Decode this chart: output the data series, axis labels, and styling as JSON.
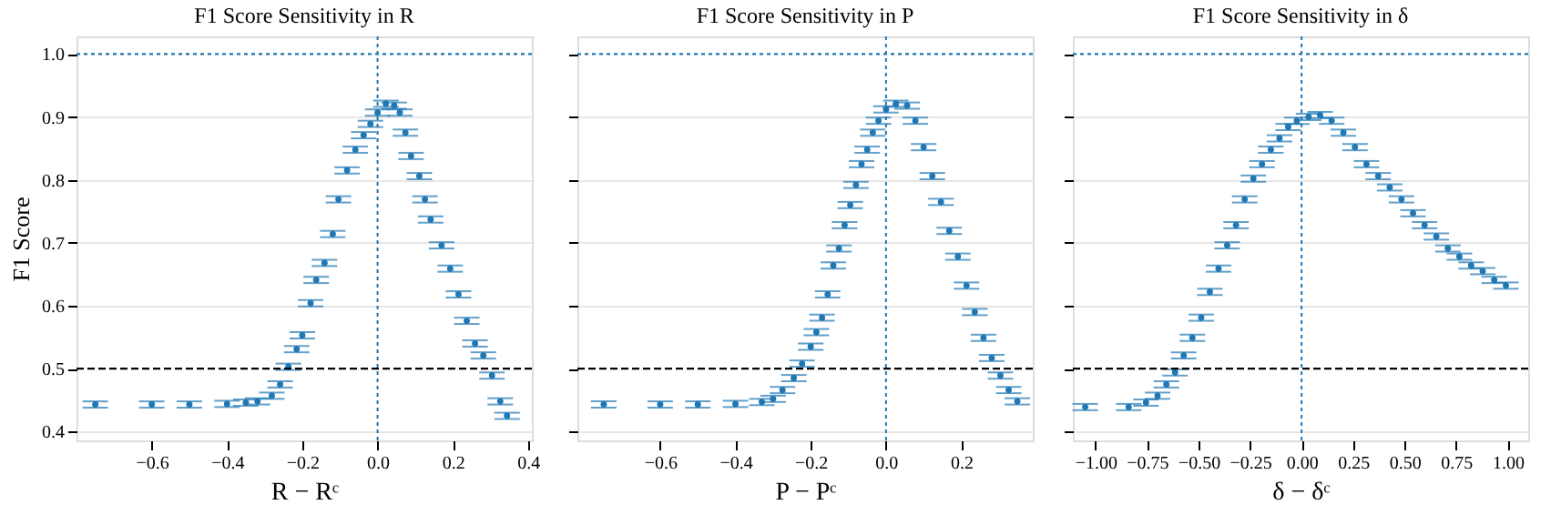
{
  "chart_data": [
    {
      "type": "scatter",
      "title": "F1 Score Sensitivity in R",
      "xlabel": "R − Rᶜ",
      "ylabel": "F1 Score",
      "marker": "circle",
      "grid": "y",
      "xlim": [
        -0.8,
        0.41
      ],
      "xticks": [
        -0.6,
        -0.4,
        -0.2,
        {
          "value": 0,
          "label": "0.0"
        },
        0.2,
        0.4
      ],
      "ylim": [
        0.386,
        1.028
      ],
      "yticks": [
        0.4,
        0.5,
        0.6,
        0.7,
        0.8,
        0.9,
        {
          "value": 1,
          "label": "1.0"
        }
      ],
      "x": [
        -0.75,
        -0.6,
        -0.5,
        -0.4,
        -0.35,
        -0.319,
        -0.281,
        -0.259,
        -0.237,
        -0.215,
        -0.2,
        -0.178,
        -0.163,
        -0.141,
        -0.119,
        -0.104,
        -0.081,
        -0.059,
        -0.037,
        -0.019,
        0.0,
        0.022,
        0.044,
        0.059,
        0.074,
        0.089,
        0.111,
        0.126,
        0.141,
        0.17,
        0.193,
        0.215,
        0.237,
        0.259,
        0.281,
        0.304,
        0.326,
        0.344
      ],
      "series": [
        {
          "color": "#1f77b4",
          "values": [
            0.443,
            0.443,
            0.443,
            0.444,
            0.446,
            0.448,
            0.457,
            0.475,
            0.503,
            0.531,
            0.553,
            0.604,
            0.641,
            0.668,
            0.714,
            0.769,
            0.815,
            0.848,
            0.871,
            0.889,
            0.907,
            0.921,
            0.918,
            0.907,
            0.875,
            0.838,
            0.806,
            0.769,
            0.737,
            0.696,
            0.659,
            0.618,
            0.576,
            0.54,
            0.521,
            0.489,
            0.448,
            0.425
          ],
          "errors": [
            0.005,
            0.005,
            0.005,
            0.005,
            0.005,
            0.005,
            0.005,
            0.005,
            0.005,
            0.005,
            0.005,
            0.005,
            0.005,
            0.005,
            0.005,
            0.005,
            0.005,
            0.005,
            0.005,
            0.005,
            0.005,
            0.005,
            0.005,
            0.005,
            0.005,
            0.005,
            0.005,
            0.005,
            0.005,
            0.005,
            0.005,
            0.005,
            0.005,
            0.005,
            0.005,
            0.005,
            0.005,
            0.005
          ]
        }
      ],
      "ref_lines": [
        {
          "axis": "y",
          "value": 1.0,
          "color": "#1f77b4",
          "line_style": "dotted"
        },
        {
          "axis": "y",
          "value": 0.5,
          "color": "#000000",
          "line_style": "dashed"
        },
        {
          "axis": "x",
          "value": 0.0,
          "color": "#1f77b4",
          "line_style": "dotted"
        }
      ]
    },
    {
      "type": "scatter",
      "title": "F1 Score Sensitivity in P",
      "xlabel": "P − Pᶜ",
      "marker": "circle",
      "grid": "y",
      "tick_labels": "x",
      "xlim": [
        -0.82,
        0.39
      ],
      "xticks": [
        -0.6,
        -0.4,
        -0.2,
        {
          "value": 0,
          "label": "0.0"
        },
        0.2
      ],
      "ylim": [
        0.386,
        1.028
      ],
      "yticks": [
        0.4,
        0.5,
        0.6,
        0.7,
        0.8,
        0.9,
        1.0
      ],
      "x": [
        -0.75,
        -0.6,
        -0.5,
        -0.4,
        -0.33,
        -0.3,
        -0.275,
        -0.245,
        -0.223,
        -0.2,
        -0.185,
        -0.17,
        -0.155,
        -0.14,
        -0.125,
        -0.11,
        -0.095,
        -0.08,
        -0.065,
        -0.05,
        -0.035,
        -0.02,
        0.0,
        0.026,
        0.056,
        0.078,
        0.1,
        0.123,
        0.146,
        0.168,
        0.191,
        0.214,
        0.236,
        0.259,
        0.281,
        0.304,
        0.326,
        0.349
      ],
      "series": [
        {
          "color": "#1f77b4",
          "values": [
            0.443,
            0.443,
            0.443,
            0.444,
            0.447,
            0.452,
            0.466,
            0.485,
            0.508,
            0.535,
            0.558,
            0.581,
            0.618,
            0.664,
            0.691,
            0.728,
            0.76,
            0.792,
            0.825,
            0.848,
            0.875,
            0.894,
            0.912,
            0.921,
            0.918,
            0.894,
            0.852,
            0.806,
            0.765,
            0.719,
            0.678,
            0.632,
            0.59,
            0.549,
            0.517,
            0.489,
            0.466,
            0.448
          ],
          "errors": [
            0.005,
            0.005,
            0.005,
            0.005,
            0.005,
            0.005,
            0.005,
            0.005,
            0.005,
            0.005,
            0.005,
            0.005,
            0.005,
            0.005,
            0.005,
            0.005,
            0.005,
            0.005,
            0.005,
            0.005,
            0.005,
            0.005,
            0.005,
            0.005,
            0.005,
            0.005,
            0.005,
            0.005,
            0.005,
            0.005,
            0.005,
            0.005,
            0.005,
            0.005,
            0.005,
            0.005,
            0.005,
            0.005
          ]
        }
      ],
      "ref_lines": [
        {
          "axis": "y",
          "value": 1.0,
          "color": "#1f77b4",
          "line_style": "dotted"
        },
        {
          "axis": "y",
          "value": 0.5,
          "color": "#000000",
          "line_style": "dashed"
        },
        {
          "axis": "x",
          "value": 0.0,
          "color": "#1f77b4",
          "line_style": "dotted"
        }
      ]
    },
    {
      "type": "scatter",
      "title": "F1 Score Sensitivity in δ",
      "xlabel": "δ − δᶜ",
      "marker": "circle",
      "grid": "y",
      "tick_labels": "x",
      "xlim": [
        -1.11,
        1.1
      ],
      "xticks": [
        {
          "value": -1,
          "label": "−1.00"
        },
        -0.75,
        {
          "value": -0.5,
          "label": "−0.50"
        },
        -0.25,
        {
          "value": 0,
          "label": "0.00"
        },
        0.25,
        {
          "value": 0.5,
          "label": "0.50"
        },
        0.75,
        {
          "value": 1,
          "label": "1.00"
        }
      ],
      "ylim": [
        0.386,
        1.028
      ],
      "yticks": [
        0.4,
        0.5,
        0.6,
        0.7,
        0.8,
        0.9,
        1.0
      ],
      "x": [
        -1.05,
        -0.839,
        -0.755,
        -0.699,
        -0.656,
        -0.614,
        -0.572,
        -0.53,
        -0.487,
        -0.445,
        -0.403,
        -0.361,
        -0.318,
        -0.276,
        -0.234,
        -0.192,
        -0.149,
        -0.107,
        -0.065,
        -0.023,
        0.034,
        0.09,
        0.146,
        0.203,
        0.259,
        0.315,
        0.372,
        0.428,
        0.485,
        0.541,
        0.597,
        0.654,
        0.71,
        0.766,
        0.823,
        0.879,
        0.935,
        0.992
      ],
      "series": [
        {
          "color": "#1f77b4",
          "values": [
            0.439,
            0.439,
            0.446,
            0.457,
            0.475,
            0.494,
            0.521,
            0.549,
            0.581,
            0.622,
            0.659,
            0.696,
            0.728,
            0.769,
            0.802,
            0.825,
            0.848,
            0.866,
            0.884,
            0.894,
            0.9,
            0.903,
            0.894,
            0.875,
            0.852,
            0.825,
            0.806,
            0.788,
            0.769,
            0.747,
            0.728,
            0.71,
            0.691,
            0.678,
            0.664,
            0.655,
            0.641,
            0.632
          ],
          "errors": [
            0.005,
            0.005,
            0.005,
            0.005,
            0.005,
            0.005,
            0.005,
            0.005,
            0.005,
            0.005,
            0.005,
            0.005,
            0.005,
            0.005,
            0.005,
            0.005,
            0.005,
            0.005,
            0.005,
            0.005,
            0.005,
            0.005,
            0.005,
            0.005,
            0.005,
            0.005,
            0.005,
            0.005,
            0.005,
            0.005,
            0.005,
            0.005,
            0.005,
            0.005,
            0.005,
            0.005,
            0.005,
            0.005
          ]
        }
      ],
      "ref_lines": [
        {
          "axis": "y",
          "value": 1.0,
          "color": "#1f77b4",
          "line_style": "dotted"
        },
        {
          "axis": "y",
          "value": 0.5,
          "color": "#000000",
          "line_style": "dashed"
        },
        {
          "axis": "x",
          "value": 0.0,
          "color": "#1f77b4",
          "line_style": "dotted"
        }
      ]
    }
  ]
}
